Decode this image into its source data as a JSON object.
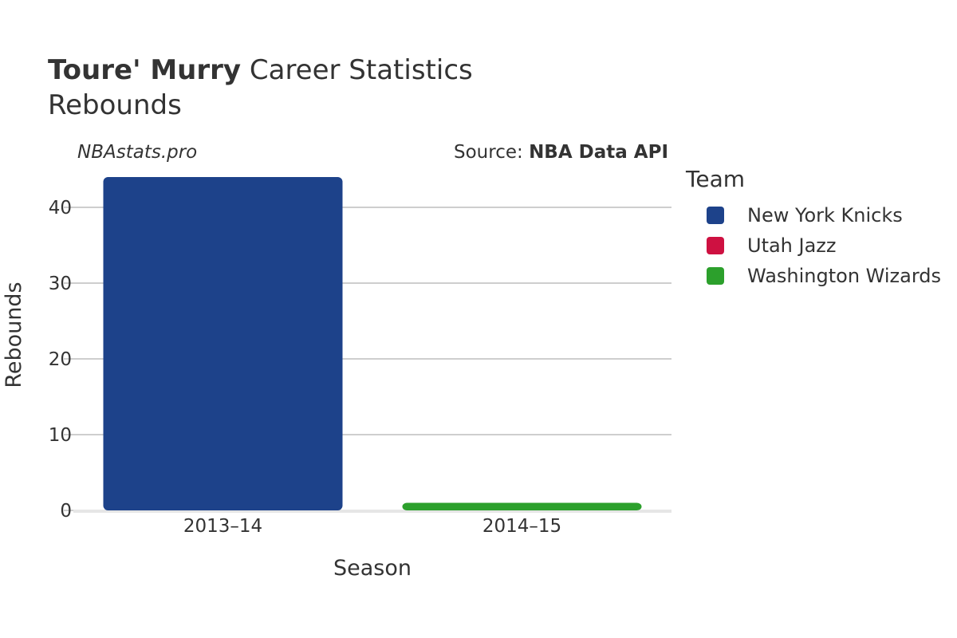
{
  "header": {
    "title_bold": "Toure' Murry",
    "title_rest": " Career Statistics",
    "subtitle": "Rebounds",
    "watermark": "NBAstats.pro",
    "source_prefix": "Source: ",
    "source_name": "NBA Data API"
  },
  "legend": {
    "title": "Team",
    "items": [
      {
        "label": "New York Knicks",
        "color": "#1d428a"
      },
      {
        "label": "Utah Jazz",
        "color": "#ce1141"
      },
      {
        "label": "Washington Wizards",
        "color": "#2ca02c"
      }
    ]
  },
  "chart_data": {
    "type": "bar",
    "title": "Toure' Murry Career Statistics",
    "subtitle": "Rebounds",
    "xlabel": "Season",
    "ylabel": "Rebounds",
    "categories": [
      "2013–14",
      "2014–15"
    ],
    "ylim": [
      0,
      44
    ],
    "yticks": [
      0,
      10,
      20,
      30,
      40
    ],
    "grid": true,
    "legend_position": "right",
    "series": [
      {
        "name": "New York Knicks",
        "color": "#1d428a",
        "values": [
          44,
          null
        ]
      },
      {
        "name": "Utah Jazz",
        "color": "#ce1141",
        "values": [
          null,
          0
        ]
      },
      {
        "name": "Washington Wizards",
        "color": "#2ca02c",
        "values": [
          null,
          1
        ]
      }
    ]
  }
}
